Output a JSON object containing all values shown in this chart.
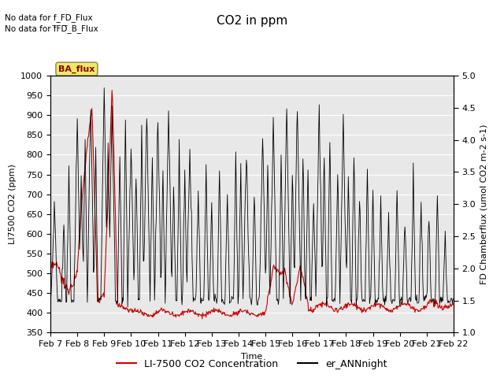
{
  "title": "CO2 in ppm",
  "xlabel": "Time",
  "ylabel_left": "LI7500 CO2 (ppm)",
  "ylabel_right": "FD Chamberflux (umol CO2 m-2 s-1)",
  "ylim_left": [
    350,
    1000
  ],
  "ylim_right": [
    1.0,
    5.0
  ],
  "xtick_labels": [
    "Feb 7",
    "Feb 8",
    "Feb 9",
    "Feb 10",
    "Feb 11",
    "Feb 12",
    "Feb 13",
    "Feb 14",
    "Feb 15",
    "Feb 16",
    "Feb 17",
    "Feb 18",
    "Feb 19",
    "Feb 20",
    "Feb 21",
    "Feb 22"
  ],
  "annotation1": "No data for f_FD_Flux",
  "annotation2": "No data for f̅FD̅_B_Flux",
  "ba_flux_label": "BA_flux",
  "legend_red": "LI-7500 CO2 Concentration",
  "legend_black": "er_ANNnight",
  "red_color": "#cc0000",
  "black_color": "#000000",
  "bg_color": "#e8e8e8",
  "fig_bg_color": "#ffffff",
  "title_fontsize": 11,
  "axis_fontsize": 8,
  "tick_fontsize": 8,
  "legend_fontsize": 9
}
